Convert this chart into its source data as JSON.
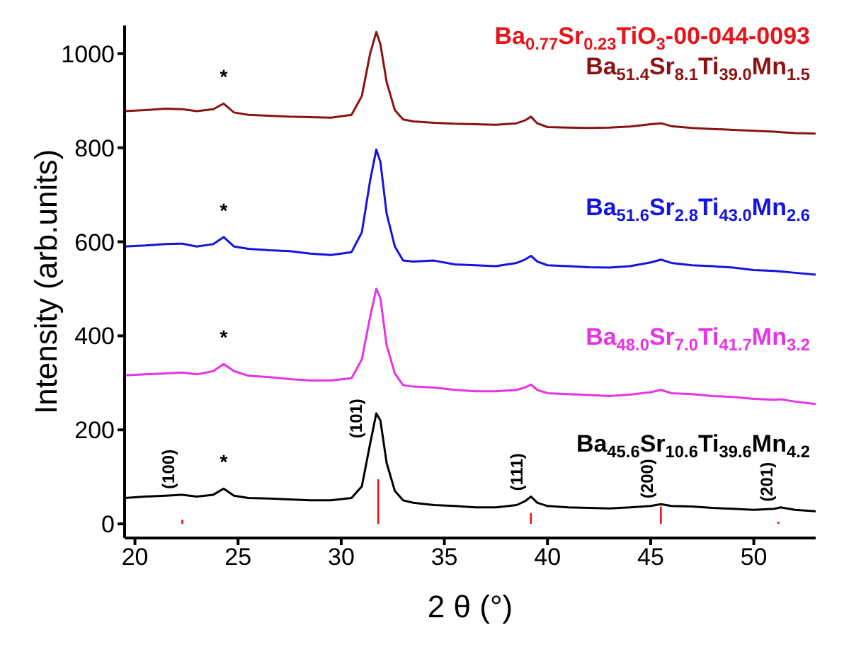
{
  "chart_data": {
    "type": "line",
    "xlabel": "2 θ (°)",
    "ylabel": "Intensity (arb.units)",
    "xlim": [
      19.5,
      53
    ],
    "xticks": [
      20,
      25,
      30,
      35,
      40,
      45,
      50
    ],
    "ylim": [
      -30,
      1060
    ],
    "yticks": [
      0,
      200,
      400,
      600,
      800,
      1000
    ],
    "grid": false,
    "series": [
      {
        "name": "Ba$_{0.77}$Sr$_{0.23}$TiO$_{3}$-00-044-0093",
        "type": "bar",
        "color": "#e8141a",
        "x": [
          22.3,
          31.8,
          39.2,
          45.5,
          51.2
        ],
        "values": [
          9,
          95,
          23,
          37,
          5
        ]
      },
      {
        "name": "Ba$_{51.4}$Sr$_{8.1}$Ti$_{39.0}$Mn$_{1.5}$",
        "color": "#8b1212",
        "x": [
          19.5,
          20.5,
          21.5,
          22.3,
          23,
          23.8,
          24.3,
          24.8,
          25.5,
          26.5,
          27.5,
          28.5,
          29.5,
          30.5,
          31,
          31.4,
          31.7,
          31.9,
          32.2,
          32.6,
          33,
          33.5,
          34.5,
          35.5,
          36.5,
          37.5,
          38.5,
          38.9,
          39.2,
          39.5,
          40,
          41,
          42,
          43,
          44,
          45,
          45.5,
          46,
          47,
          48,
          49,
          50,
          51,
          51.3,
          52,
          53
        ],
        "values": [
          878,
          880,
          883,
          882,
          878,
          882,
          894,
          875,
          870,
          868,
          866,
          865,
          864,
          870,
          910,
          1000,
          1046,
          1020,
          940,
          880,
          860,
          856,
          853,
          851,
          850,
          849,
          852,
          858,
          866,
          852,
          844,
          843,
          842,
          843,
          845,
          850,
          852,
          846,
          842,
          840,
          838,
          836,
          834,
          833,
          831,
          830
        ]
      },
      {
        "name": "Ba$_{51.6}$Sr$_{2.8}$Ti$_{43.0}$Mn$_{2.6}$",
        "color": "#1414e0",
        "x": [
          19.5,
          20.5,
          21.5,
          22.3,
          23,
          23.8,
          24.3,
          24.8,
          25.5,
          26.5,
          27.5,
          28.5,
          29.5,
          30.5,
          31,
          31.4,
          31.7,
          31.9,
          32.2,
          32.6,
          33,
          33.5,
          34.5,
          35.5,
          36.5,
          37.5,
          38.5,
          38.9,
          39.2,
          39.5,
          40,
          41,
          42,
          43,
          44,
          45,
          45.5,
          46,
          47,
          48,
          49,
          50,
          51,
          51.3,
          52,
          53
        ],
        "values": [
          590,
          592,
          595,
          596,
          590,
          595,
          610,
          590,
          585,
          582,
          580,
          575,
          572,
          578,
          620,
          730,
          796,
          770,
          660,
          590,
          560,
          558,
          560,
          552,
          550,
          548,
          555,
          562,
          570,
          558,
          550,
          548,
          546,
          545,
          548,
          556,
          562,
          555,
          550,
          548,
          545,
          540,
          538,
          537,
          534,
          530
        ]
      },
      {
        "name": "Ba$_{48.0}$Sr$_{7.0}$Ti$_{41.7}$Mn$_{3.2}$",
        "color": "#e633e6",
        "x": [
          19.5,
          20.5,
          21.5,
          22.3,
          23,
          23.8,
          24.3,
          24.8,
          25.5,
          26.5,
          27.5,
          28.5,
          29.5,
          30.5,
          31,
          31.4,
          31.7,
          31.9,
          32.2,
          32.6,
          33,
          33.5,
          34.5,
          35.5,
          36.5,
          37.5,
          38.5,
          38.9,
          39.2,
          39.5,
          40,
          41,
          42,
          43,
          44,
          45,
          45.5,
          46,
          47,
          48,
          49,
          50,
          51,
          51.3,
          52,
          53
        ],
        "values": [
          316,
          318,
          320,
          322,
          318,
          325,
          340,
          325,
          315,
          312,
          308,
          305,
          305,
          310,
          350,
          440,
          500,
          480,
          380,
          320,
          295,
          292,
          290,
          285,
          282,
          282,
          285,
          290,
          296,
          285,
          278,
          276,
          274,
          272,
          275,
          280,
          285,
          278,
          276,
          272,
          270,
          266,
          264,
          265,
          260,
          255
        ]
      },
      {
        "name": "Ba$_{45.6}$Sr$_{10.6}$Ti$_{39.6}$Mn$_{4.2}$",
        "color": "#000000",
        "x": [
          19.5,
          20.5,
          21.5,
          22.3,
          23,
          23.8,
          24.3,
          24.8,
          25.5,
          26.5,
          27.5,
          28.5,
          29.5,
          30.5,
          31,
          31.4,
          31.7,
          31.9,
          32.2,
          32.6,
          33,
          33.5,
          34.5,
          35.5,
          36.5,
          37.5,
          38.5,
          38.9,
          39.2,
          39.5,
          40,
          41,
          42,
          43,
          44,
          45,
          45.5,
          46,
          47,
          48,
          49,
          50,
          51,
          51.3,
          52,
          53
        ],
        "values": [
          55,
          58,
          60,
          62,
          58,
          62,
          75,
          60,
          55,
          54,
          52,
          50,
          50,
          55,
          80,
          170,
          235,
          220,
          130,
          70,
          50,
          45,
          40,
          38,
          35,
          35,
          40,
          48,
          58,
          45,
          38,
          35,
          34,
          33,
          35,
          38,
          42,
          38,
          37,
          34,
          32,
          30,
          32,
          35,
          30,
          27
        ]
      }
    ],
    "annotations": [
      {
        "text": "(100)",
        "x": 22.3,
        "y": 62
      },
      {
        "text": "(101)",
        "x": 31.4,
        "y": 170
      },
      {
        "text": "(111)",
        "x": 39.2,
        "y": 58
      },
      {
        "text": "(200)",
        "x": 45.5,
        "y": 42
      },
      {
        "text": "(201)",
        "x": 51.3,
        "y": 35
      },
      {
        "text": "*",
        "x": 24.3,
        "y": 75
      },
      {
        "text": "*",
        "x": 24.3,
        "y": 340
      },
      {
        "text": "*",
        "x": 24.3,
        "y": 610
      },
      {
        "text": "*",
        "x": 24.3,
        "y": 894
      }
    ]
  }
}
